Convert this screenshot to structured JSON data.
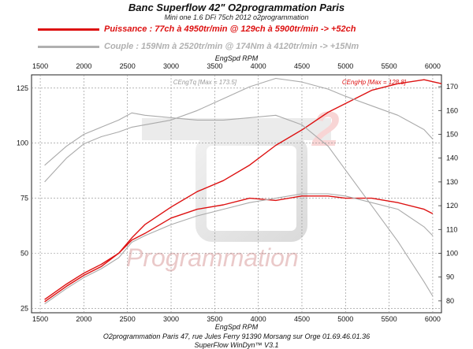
{
  "header": {
    "title": "Banc Superflow 42\" O2programmation Paris",
    "subtitle": "Mini one 1.6 DFi 75ch 2012 o2programmation"
  },
  "legend": {
    "power": {
      "text": "Puissance : 77ch à 4950tr/min @ 129ch à 5900tr/min  -> +52ch",
      "color": "#dd1111"
    },
    "torque": {
      "text": "Couple :  159Nm à 2520tr/min @ 174Nm à 4120tr/min -> +15Nm",
      "color": "#b0b0b0"
    }
  },
  "footer": {
    "address": "O2programmation Paris 47, rue Jules Ferry 91390 Morsang sur Orge 01.69.46.01.36",
    "software": "SuperFlow WinDyn™ V3.1"
  },
  "watermark": {
    "text": "Programmation",
    "number": "2"
  },
  "chart_data": {
    "type": "line",
    "xlabel": "EngSpd RPM",
    "xlim": [
      1400,
      6100
    ],
    "x_ticks": [
      1500,
      2000,
      2500,
      3000,
      3500,
      4000,
      4500,
      5000,
      5500,
      6000
    ],
    "y_left": {
      "lim": [
        23,
        131
      ],
      "ticks": [
        25,
        50,
        75,
        100,
        125
      ]
    },
    "y_right": {
      "lim": [
        75,
        175
      ],
      "ticks": [
        80,
        90,
        100,
        110,
        120,
        130,
        140,
        150,
        160,
        170
      ]
    },
    "annotations": {
      "power_max": "CEngHp [Max = 128.8]",
      "torque_max": "CEngTq [Max = 173.5]"
    },
    "colors": {
      "modified": "#dd1111",
      "stock": "#aaaaaa"
    },
    "series": [
      {
        "axis": "left",
        "color": "#dd1111",
        "x": [
          1550,
          1800,
          2000,
          2200,
          2400,
          2550,
          2700,
          3000,
          3300,
          3600,
          3900,
          4200,
          4500,
          4800,
          5000,
          5300,
          5600,
          5900,
          6100
        ],
        "values": [
          29,
          36,
          41,
          45,
          50,
          57,
          63,
          71,
          78,
          83,
          90,
          99,
          106,
          114,
          118,
          124,
          127,
          128.8,
          127
        ]
      },
      {
        "axis": "left",
        "color": "#dd1111",
        "x": [
          1550,
          1800,
          2000,
          2200,
          2400,
          2550,
          2700,
          3000,
          3300,
          3600,
          3900,
          4200,
          4500,
          4800,
          5000,
          5300,
          5600,
          5900,
          6000
        ],
        "values": [
          28,
          35,
          40,
          44,
          50,
          56,
          59,
          66,
          70,
          72,
          75,
          74,
          76,
          76,
          75,
          75,
          73,
          70,
          68
        ]
      },
      {
        "axis": "left",
        "color": "#aaaaaa",
        "x": [
          1550,
          1800,
          2000,
          2200,
          2400,
          2550,
          2700,
          3000,
          3300,
          3600,
          3900,
          4200,
          4500,
          4800,
          5000,
          5300,
          5600,
          5900,
          6000
        ],
        "values": [
          27,
          34,
          39,
          43,
          48,
          55,
          58,
          63,
          67,
          70,
          73,
          75,
          77,
          77,
          76,
          73,
          70,
          62,
          58
        ]
      },
      {
        "axis": "right",
        "color": "#aaaaaa",
        "x": [
          1550,
          1800,
          2000,
          2200,
          2400,
          2550,
          2700,
          3000,
          3300,
          3600,
          3900,
          4200,
          4500,
          4800,
          5000,
          5300,
          5600,
          5900,
          6000
        ],
        "values": [
          137,
          145,
          150,
          153,
          156,
          159,
          158,
          157,
          156,
          156,
          157,
          158,
          154,
          145,
          135,
          120,
          105,
          88,
          82
        ]
      },
      {
        "axis": "right",
        "color": "#aaaaaa",
        "x": [
          1550,
          1800,
          2000,
          2200,
          2400,
          2550,
          2700,
          3000,
          3300,
          3600,
          3900,
          4200,
          4500,
          4800,
          5000,
          5300,
          5600,
          5900,
          6000
        ],
        "values": [
          130,
          140,
          146,
          149,
          151,
          153,
          154,
          156,
          160,
          165,
          170,
          173.5,
          172,
          169,
          166,
          162,
          158,
          152,
          148
        ]
      }
    ]
  }
}
